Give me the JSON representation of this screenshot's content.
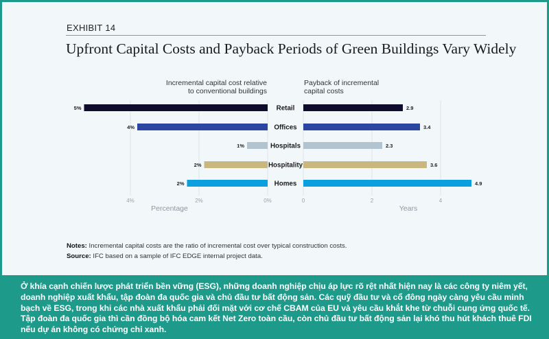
{
  "exhibit_label": "EXHIBIT 14",
  "title": "Upfront Capital Costs and Payback Periods of Green Buildings Vary Widely",
  "chart_data": [
    {
      "type": "bar",
      "orientation": "horizontal",
      "direction": "leftward",
      "title": "Incremental capital cost relative to conventional buildings",
      "title_lines": [
        "Incremental capital cost relative",
        "to conventional buildings"
      ],
      "xlabel": "Percentage",
      "ylabel": "",
      "categories": [
        "Retail",
        "Offices",
        "Hospitals",
        "Hospitality",
        "Homes"
      ],
      "values": [
        5.35,
        3.8,
        0.6,
        1.85,
        2.35
      ],
      "data_labels": [
        "5%",
        "4%",
        "1%",
        "2%",
        "2%"
      ],
      "xlim": [
        0,
        5.4
      ],
      "ticks": [
        4,
        2,
        0
      ],
      "tick_labels": [
        "4%",
        "2%",
        "0%"
      ],
      "grid": true,
      "colors": [
        "#0f0c2e",
        "#2b46a0",
        "#b3c4d1",
        "#c9b77e",
        "#0aa0df"
      ]
    },
    {
      "type": "bar",
      "orientation": "horizontal",
      "direction": "rightward",
      "title": "Payback of incremental capital costs",
      "title_lines": [
        "Payback of incremental",
        "capital costs"
      ],
      "xlabel": "Years",
      "ylabel": "",
      "categories": [
        "Retail",
        "Offices",
        "Hospitals",
        "Hospitality",
        "Homes"
      ],
      "values": [
        2.9,
        3.4,
        2.3,
        3.6,
        4.9
      ],
      "data_labels": [
        "2.9",
        "3.4",
        "2.3",
        "3.6",
        "4.9"
      ],
      "xlim": [
        0,
        5
      ],
      "ticks": [
        0,
        2,
        4
      ],
      "tick_labels": [
        "0",
        "2",
        "4"
      ],
      "grid": true,
      "colors": [
        "#0f0c2e",
        "#2b46a0",
        "#b3c4d1",
        "#c9b77e",
        "#0aa0df"
      ]
    }
  ],
  "notes": {
    "notes_label": "Notes:",
    "notes_text": " Incremental capital costs are the ratio of incremental cost over typical construction costs.",
    "source_label": "Source:",
    "source_text": " IFC based on a sample of IFC EDGE internal project data."
  },
  "caption": "Ở khía cạnh chiến lược phát triển bền vững (ESG), những doanh nghiệp chịu áp lực rõ rệt nhất hiện nay là các công ty niêm yết, doanh nghiệp xuất khẩu, tập đoàn đa quốc gia và chủ đầu tư bất động sản. Các quỹ đầu tư và cổ đông ngày càng yêu cầu minh bạch về ESG, trong khi các nhà xuất khẩu phải đối mặt với cơ chế CBAM của EU và yêu cầu khắt khe từ chuỗi cung ứng quốc tế. Tập đoàn đa quốc gia thì cần đồng bộ hóa cam kết Net Zero toàn cầu, còn chủ đầu tư bất động sản lại khó thu hút khách thuê FDI nếu dự án không có chứng chỉ xanh.",
  "colors": {
    "frame": "#1e9a8b",
    "panel": "#f2f7fa"
  }
}
